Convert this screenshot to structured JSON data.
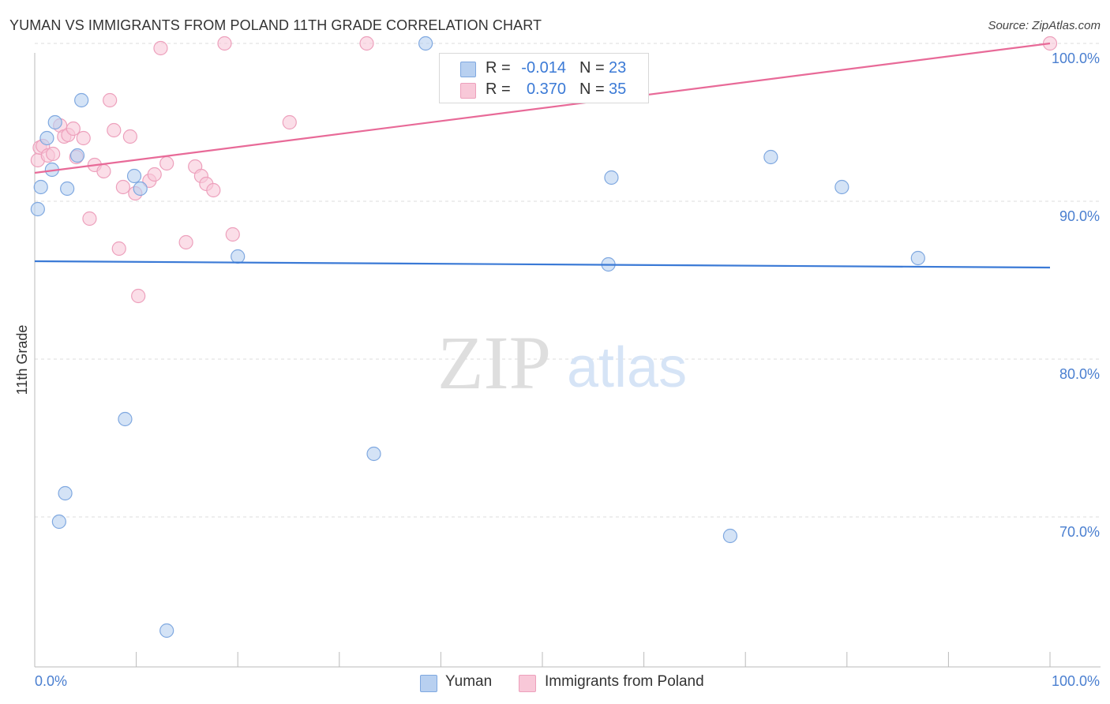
{
  "title": "YUMAN VS IMMIGRANTS FROM POLAND 11TH GRADE CORRELATION CHART",
  "source": "Source: ZipAtlas.com",
  "watermark": {
    "zip": "ZIP",
    "atlas": "atlas"
  },
  "colors": {
    "blue_fill": "#b8d0f0",
    "blue_stroke": "#7fa8e0",
    "blue_line": "#3b7ad6",
    "pink_fill": "#f8c8d8",
    "pink_stroke": "#eda0bc",
    "pink_line": "#e86a98",
    "tick_text": "#4a7fd0",
    "grid": "#dddddd"
  },
  "legend": {
    "rows": [
      {
        "r_label": "R =",
        "r_value": "-0.014",
        "n_label": "N =",
        "n_value": "23"
      },
      {
        "r_label": "R =",
        "r_value": "0.370",
        "n_label": "N =",
        "n_value": "35"
      }
    ]
  },
  "bottom_legend": [
    "Yuman",
    "Immigrants from Poland"
  ],
  "chart_data": {
    "type": "scatter",
    "title": "YUMAN VS IMMIGRANTS FROM POLAND 11TH GRADE CORRELATION CHART",
    "xlabel": "",
    "ylabel": "11th Grade",
    "xlim": [
      0,
      100
    ],
    "ylim": [
      60.5,
      101.5
    ],
    "x_tick_labels": [
      "0.0%",
      "100.0%"
    ],
    "y_ticks": [
      70,
      80,
      90,
      100
    ],
    "y_tick_labels": [
      "70.0%",
      "80.0%",
      "90.0%",
      "100.0%"
    ],
    "grid": true,
    "series": [
      {
        "name": "Yuman",
        "r": -0.014,
        "n": 23,
        "trend": {
          "x": [
            0,
            100
          ],
          "y": [
            86.2,
            85.8
          ]
        },
        "points": [
          {
            "x": 0.3,
            "y": 89.5
          },
          {
            "x": 0.6,
            "y": 90.9
          },
          {
            "x": 1.2,
            "y": 94.0
          },
          {
            "x": 1.7,
            "y": 92.0
          },
          {
            "x": 2.0,
            "y": 95.0
          },
          {
            "x": 3.2,
            "y": 90.8
          },
          {
            "x": 4.2,
            "y": 92.9
          },
          {
            "x": 4.6,
            "y": 96.4
          },
          {
            "x": 9.8,
            "y": 91.6
          },
          {
            "x": 10.4,
            "y": 90.8
          },
          {
            "x": 20.0,
            "y": 86.5
          },
          {
            "x": 38.5,
            "y": 100.0
          },
          {
            "x": 56.5,
            "y": 86.0
          },
          {
            "x": 56.8,
            "y": 91.5
          },
          {
            "x": 72.5,
            "y": 92.8
          },
          {
            "x": 79.5,
            "y": 90.9
          },
          {
            "x": 87.0,
            "y": 86.4
          },
          {
            "x": 8.9,
            "y": 76.2
          },
          {
            "x": 33.4,
            "y": 74.0
          },
          {
            "x": 3.0,
            "y": 71.5
          },
          {
            "x": 2.4,
            "y": 69.7
          },
          {
            "x": 68.5,
            "y": 68.8
          },
          {
            "x": 13.0,
            "y": 62.8
          }
        ]
      },
      {
        "name": "Immigrants from Poland",
        "r": 0.37,
        "n": 35,
        "trend": {
          "x": [
            0,
            100
          ],
          "y": [
            91.8,
            100.0
          ]
        },
        "points": [
          {
            "x": 0.3,
            "y": 92.6
          },
          {
            "x": 0.5,
            "y": 93.4
          },
          {
            "x": 0.8,
            "y": 93.5
          },
          {
            "x": 1.3,
            "y": 92.9
          },
          {
            "x": 1.8,
            "y": 93.0
          },
          {
            "x": 2.5,
            "y": 94.8
          },
          {
            "x": 2.9,
            "y": 94.1
          },
          {
            "x": 3.3,
            "y": 94.2
          },
          {
            "x": 3.8,
            "y": 94.6
          },
          {
            "x": 4.1,
            "y": 92.8
          },
          {
            "x": 4.8,
            "y": 94.0
          },
          {
            "x": 5.9,
            "y": 92.3
          },
          {
            "x": 6.8,
            "y": 91.9
          },
          {
            "x": 7.4,
            "y": 96.4
          },
          {
            "x": 7.8,
            "y": 94.5
          },
          {
            "x": 8.3,
            "y": 87.0
          },
          {
            "x": 8.7,
            "y": 90.9
          },
          {
            "x": 9.4,
            "y": 94.1
          },
          {
            "x": 9.9,
            "y": 90.5
          },
          {
            "x": 11.3,
            "y": 91.3
          },
          {
            "x": 11.8,
            "y": 91.7
          },
          {
            "x": 12.4,
            "y": 99.7
          },
          {
            "x": 13.0,
            "y": 92.4
          },
          {
            "x": 14.9,
            "y": 87.4
          },
          {
            "x": 15.8,
            "y": 92.2
          },
          {
            "x": 16.4,
            "y": 91.6
          },
          {
            "x": 16.9,
            "y": 91.1
          },
          {
            "x": 17.6,
            "y": 90.7
          },
          {
            "x": 18.7,
            "y": 100.0
          },
          {
            "x": 19.5,
            "y": 87.9
          },
          {
            "x": 25.1,
            "y": 95.0
          },
          {
            "x": 32.7,
            "y": 100.0
          },
          {
            "x": 100.0,
            "y": 100.0
          },
          {
            "x": 5.4,
            "y": 88.9
          },
          {
            "x": 10.2,
            "y": 84.0
          }
        ]
      }
    ]
  }
}
